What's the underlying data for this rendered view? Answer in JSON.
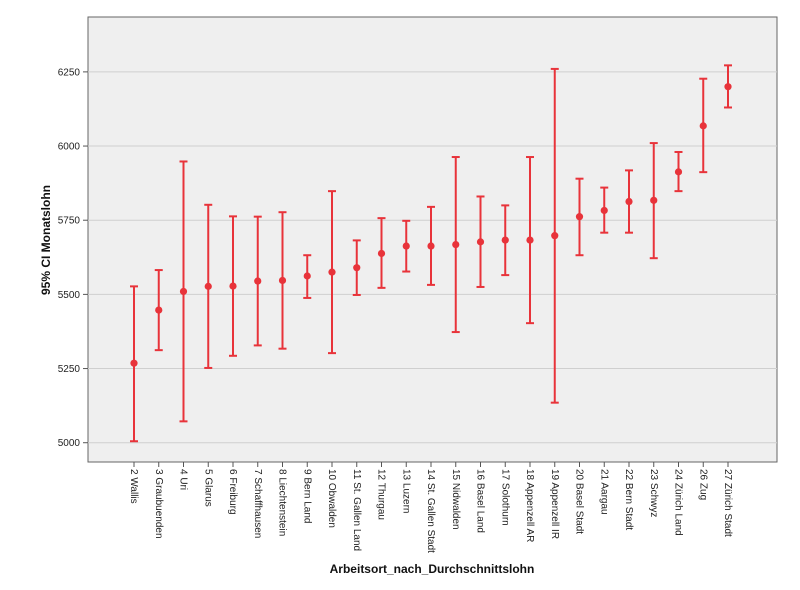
{
  "chart_data": {
    "type": "errorbar",
    "xlabel": "Arbeitsort_nach_Durchschnittslohn",
    "ylabel": "95% CI Monatslohn",
    "ylim": [
      4935,
      6435
    ],
    "yticks": [
      5000,
      5250,
      5500,
      5750,
      6000,
      6250
    ],
    "grid": true,
    "color": "#e8333a",
    "background": "#efefef",
    "categories": [
      "2 Wallis",
      "3 Graubuenden",
      "4 Uri",
      "5 Glarus",
      "6 Freiburg",
      "7 Schaffhausen",
      "8 Liechtenstein",
      "9 Bern Land",
      "10 Obwalden",
      "11 St. Gallen Land",
      "12 Thurgau",
      "13 Luzern",
      "14 St. Gallen Stadt",
      "15 Nidwalden",
      "16 Basel Land",
      "17 Solothurn",
      "18 Appenzell AR",
      "19 Appenzell IR",
      "20 Basel Stadt",
      "21 Aargau",
      "22 Bern Stadt",
      "23 Schwyz",
      "24 Zürich Land",
      "26 Zug",
      "27 Zürich Stadt"
    ],
    "mean": [
      5268,
      5447,
      5510,
      5527,
      5528,
      5545,
      5547,
      5562,
      5575,
      5590,
      5638,
      5663,
      5663,
      5668,
      5677,
      5683,
      5683,
      5698,
      5762,
      5783,
      5813,
      5817,
      5913,
      6068,
      6200
    ],
    "lower": [
      5005,
      5312,
      5072,
      5252,
      5293,
      5328,
      5317,
      5488,
      5302,
      5498,
      5522,
      5577,
      5532,
      5373,
      5525,
      5565,
      5403,
      5135,
      5632,
      5708,
      5708,
      5622,
      5848,
      5912,
      6130
    ],
    "upper": [
      5527,
      5582,
      5948,
      5802,
      5763,
      5762,
      5777,
      5632,
      5848,
      5682,
      5757,
      5748,
      5795,
      5963,
      5830,
      5800,
      5963,
      6260,
      5890,
      5860,
      5918,
      6010,
      5980,
      6227,
      6272
    ]
  }
}
